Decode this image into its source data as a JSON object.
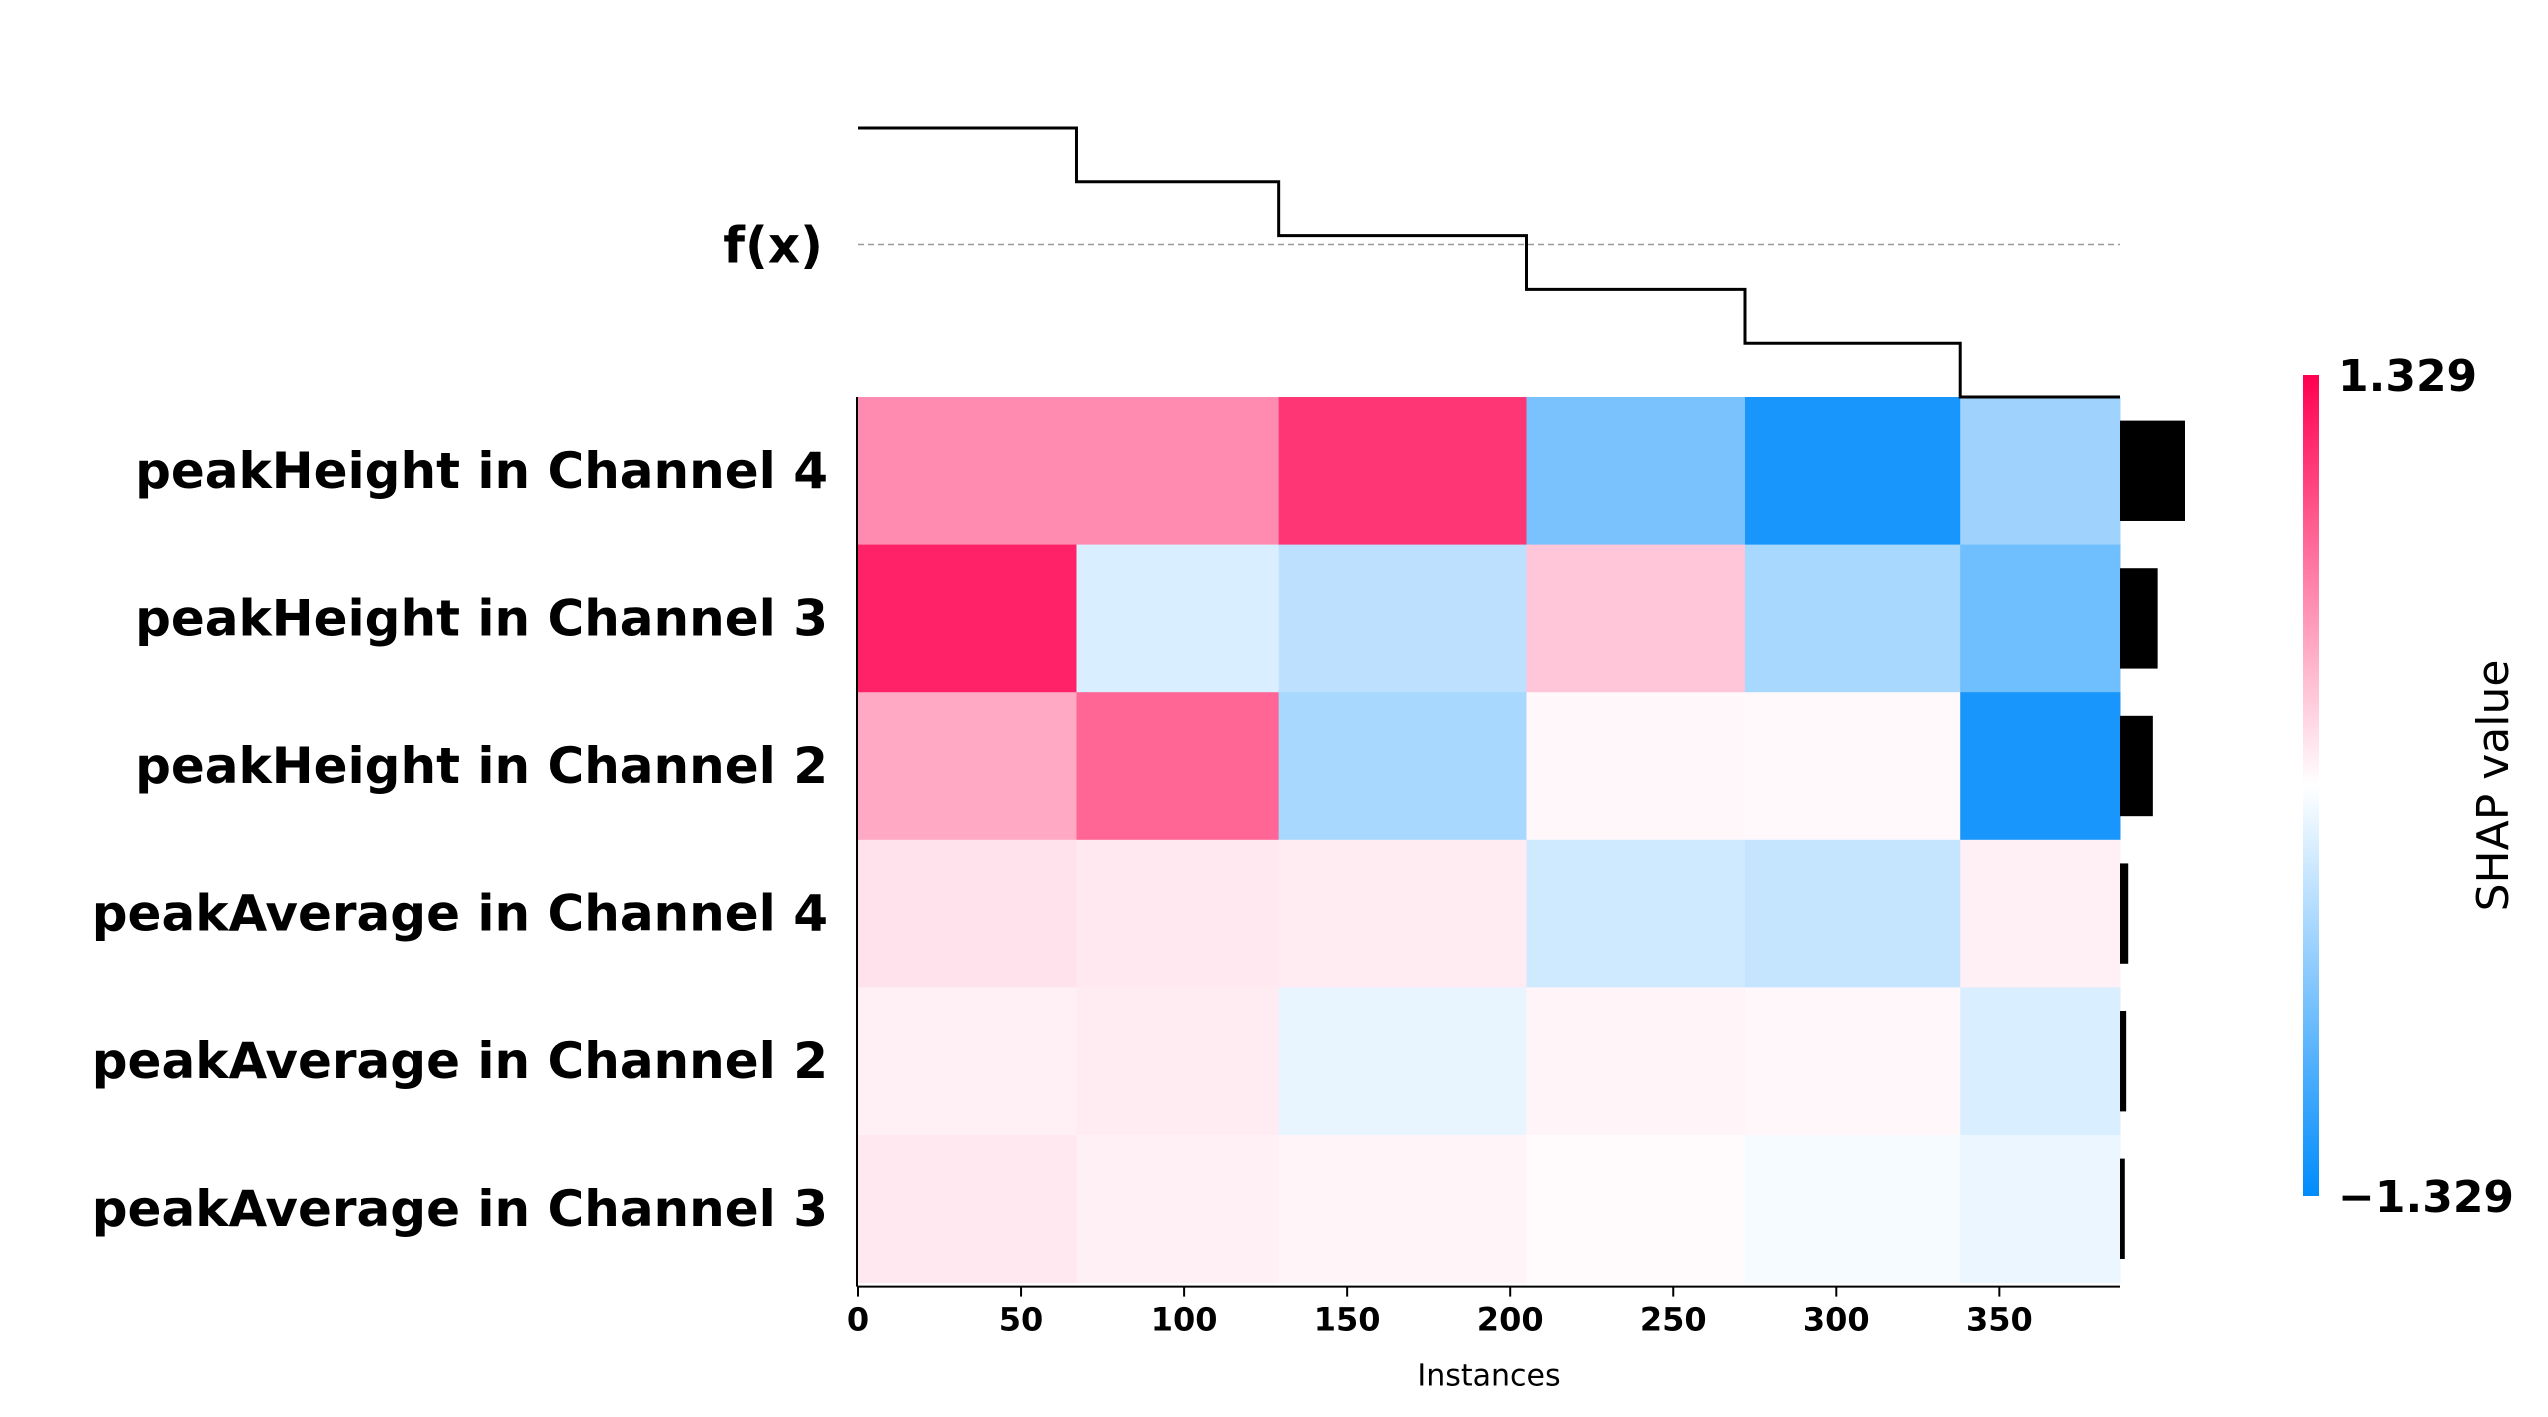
{
  "chart_data": {
    "type": "heatmap",
    "title": "",
    "xlabel": "Instances",
    "ylabel": "",
    "n_instances": 387,
    "xlim": [
      0,
      387
    ],
    "xticks": [
      0,
      50,
      100,
      150,
      200,
      250,
      300,
      350
    ],
    "output_row_label": "f(x)",
    "rows": [
      {
        "name": "peakHeight in Channel 4",
        "importance": 0.95
      },
      {
        "name": "peakHeight in Channel 3",
        "importance": 0.55
      },
      {
        "name": "peakHeight in Channel 2",
        "importance": 0.48
      },
      {
        "name": "peakAverage in Channel 4",
        "importance": 0.12
      },
      {
        "name": "peakAverage in Channel 2",
        "importance": 0.09
      },
      {
        "name": "peakAverage in Channel 3",
        "importance": 0.07
      }
    ],
    "segments": [
      {
        "start": 0,
        "end": 67,
        "fx": 1.0,
        "values": [
          0.6,
          1.15,
          0.45,
          0.15,
          0.08,
          0.12
        ]
      },
      {
        "start": 67,
        "end": 129,
        "fx": 0.75,
        "values": [
          0.6,
          -0.2,
          0.8,
          0.12,
          0.1,
          0.08
        ]
      },
      {
        "start": 129,
        "end": 205,
        "fx": 0.5,
        "values": [
          1.05,
          -0.35,
          -0.45,
          0.1,
          -0.12,
          0.05
        ]
      },
      {
        "start": 205,
        "end": 272,
        "fx": 0.25,
        "values": [
          -0.7,
          0.3,
          0.04,
          -0.25,
          0.05,
          0.02
        ]
      },
      {
        "start": 272,
        "end": 338,
        "fx": 0.0,
        "values": [
          -1.2,
          -0.45,
          0.03,
          -0.3,
          0.04,
          -0.05
        ]
      },
      {
        "start": 338,
        "end": 387,
        "fx": -0.25,
        "values": [
          -0.5,
          -0.75,
          -1.2,
          0.08,
          -0.2,
          -0.1
        ]
      }
    ],
    "colorbar": {
      "label": "SHAP value",
      "max_label": "1.329",
      "min_label": "−1.329",
      "vmin": -1.329,
      "vmax": 1.329
    },
    "colors": {
      "positive": "#ff0051",
      "negative": "#008bfb",
      "neutral": "#ffffff",
      "axis": "#000000",
      "baseline": "#999999"
    }
  }
}
